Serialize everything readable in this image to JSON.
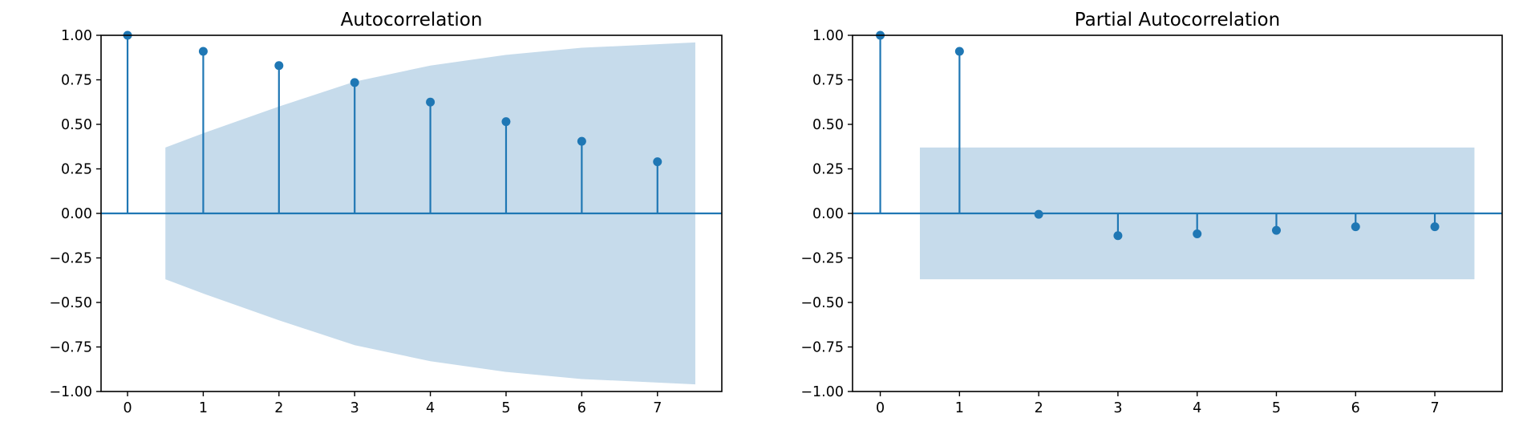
{
  "colors": {
    "stem": "#1f77b4",
    "band": "#c6dbeb",
    "frame": "#000000"
  },
  "chart_data": [
    {
      "type": "stem",
      "title": "Autocorrelation",
      "xlabel": "",
      "ylabel": "",
      "xlim": [
        -0.35,
        7.85
      ],
      "ylim": [
        -1.0,
        1.0
      ],
      "xticks": [
        0,
        1,
        2,
        3,
        4,
        5,
        6,
        7
      ],
      "xtick_labels": [
        "0",
        "1",
        "2",
        "3",
        "4",
        "5",
        "6",
        "7"
      ],
      "yticks": [
        1.0,
        0.75,
        0.5,
        0.25,
        0.0,
        -0.25,
        -0.5,
        -0.75,
        -1.0
      ],
      "ytick_labels": [
        "1.00",
        "0.75",
        "0.50",
        "0.25",
        "0.00",
        "−0.25",
        "−0.50",
        "−0.75",
        "−1.00"
      ],
      "lags": [
        0,
        1,
        2,
        3,
        4,
        5,
        6,
        7
      ],
      "values": [
        1.0,
        0.91,
        0.83,
        0.735,
        0.625,
        0.515,
        0.405,
        0.29
      ],
      "confidence_band": {
        "x": [
          0.5,
          1,
          2,
          3,
          4,
          5,
          6,
          7,
          7.5
        ],
        "upper": [
          0.37,
          0.45,
          0.6,
          0.74,
          0.83,
          0.89,
          0.93,
          0.95,
          0.96
        ],
        "lower": [
          -0.37,
          -0.45,
          -0.6,
          -0.74,
          -0.83,
          -0.89,
          -0.93,
          -0.95,
          -0.96
        ]
      }
    },
    {
      "type": "stem",
      "title": "Partial Autocorrelation",
      "xlabel": "",
      "ylabel": "",
      "xlim": [
        -0.35,
        7.85
      ],
      "ylim": [
        -1.0,
        1.0
      ],
      "xticks": [
        0,
        1,
        2,
        3,
        4,
        5,
        6,
        7
      ],
      "xtick_labels": [
        "0",
        "1",
        "2",
        "3",
        "4",
        "5",
        "6",
        "7"
      ],
      "yticks": [
        1.0,
        0.75,
        0.5,
        0.25,
        0.0,
        -0.25,
        -0.5,
        -0.75,
        -1.0
      ],
      "ytick_labels": [
        "1.00",
        "0.75",
        "0.50",
        "0.25",
        "0.00",
        "−0.25",
        "−0.50",
        "−0.75",
        "−1.00"
      ],
      "lags": [
        0,
        1,
        2,
        3,
        4,
        5,
        6,
        7
      ],
      "values": [
        1.0,
        0.91,
        -0.005,
        -0.125,
        -0.115,
        -0.095,
        -0.075,
        -0.075
      ],
      "confidence_band": {
        "x": [
          0.5,
          7.5
        ],
        "upper": [
          0.37,
          0.37
        ],
        "lower": [
          -0.37,
          -0.37
        ]
      }
    }
  ]
}
